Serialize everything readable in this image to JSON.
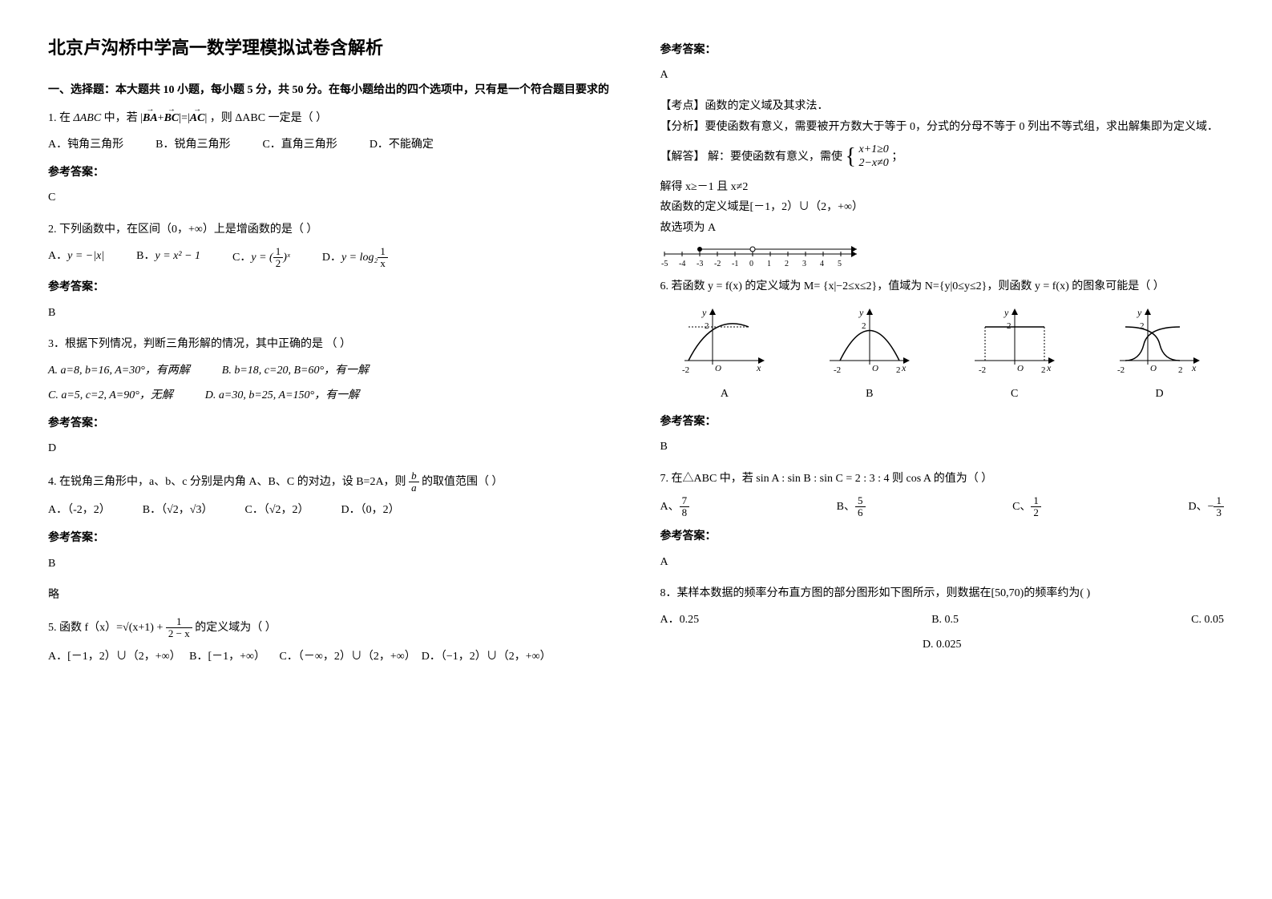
{
  "title": "北京卢沟桥中学高一数学理模拟试卷含解析",
  "section1": "一、选择题：本大题共 10 小题，每小题 5 分，共 50 分。在每小题给出的四个选项中，只有是一个符合题目要求的",
  "q1": {
    "stem_prefix": "1. 在",
    "stem_tri": "ΔABC",
    "stem_mid": " 中，若 ",
    "stem_cond": "|BA+BC|=|AC|",
    "stem_suffix": "，则 ΔABC 一定是（        ）",
    "A": "A．钝角三角形",
    "B": "B．锐角三角形",
    "C": "C．直角三角形",
    "D": "D．不能确定",
    "ans_head": "参考答案：",
    "ans": "C"
  },
  "q2": {
    "stem": "2. 下列函数中，在区间（0，+∞）上是增函数的是（        ）",
    "A_label": "A．",
    "A_expr": "y = −|x|",
    "B_label": "B．",
    "B_expr": "y = x² − 1",
    "C_label": "C．",
    "C_expr_pre": "y = (",
    "C_expr_num": "1",
    "C_expr_den": "2",
    "C_expr_post": ")ˣ",
    "D_label": "D．",
    "D_expr_pre": "y = log₂",
    "D_expr_num": "1",
    "D_expr_den": "x",
    "ans_head": "参考答案：",
    "ans": "B"
  },
  "q3": {
    "stem": "3．根据下列情况，判断三角形解的情况，其中正确的是      （        ）",
    "A": "A. a=8, b=16, A=30°，有两解",
    "B": "B. b=18, c=20, B=60°，有一解",
    "C": "C. a=5, c=2, A=90°，无解",
    "D": "D. a=30, b=25, A=150°，有一解",
    "ans_head": "参考答案：",
    "ans": "D"
  },
  "q4": {
    "stem_pre": "4. 在锐角三角形中，a、b、c 分别是内角 A、B、C 的对边，设 B=2A，则",
    "stem_frac_num": "b",
    "stem_frac_den": "a",
    "stem_post": "的取值范围（        ）",
    "A": "A．（-2，2）",
    "B": "B．（√2，√3）",
    "C": "C．（√2，2）",
    "D": "D．（0，2）",
    "ans_head": "参考答案：",
    "ans": "B",
    "note": "略"
  },
  "q5": {
    "stem_pre": "5. 函数 f（x）=√(x+1) + ",
    "stem_frac_num": "1",
    "stem_frac_den": "2 − x",
    "stem_post": " 的定义域为（       ）",
    "A": "A．[－1，2）∪（2，+∞）",
    "B": "B．[－1，+∞）",
    "C": "C．（－∞，2）∪（2，+∞）",
    "D": "D．（−1，2）∪（2，+∞）",
    "ans_head": "参考答案：",
    "ans": "A",
    "kd_label": "【考点】",
    "kd": "函数的定义域及其求法．",
    "fx_label": "【分析】",
    "fx": "要使函数有意义，需要被开方数大于等于 0，分式的分母不等于 0 列出不等式组，求出解集即为定义域．",
    "jd_label": "【解答】",
    "jd_pre": "解：要使函数有意义，需使",
    "jd_sys1": "x+1≥0",
    "jd_sys2": "2−x≠0",
    "jd_sep": "；",
    "jd_l1": "解得 x≥－1 且 x≠2",
    "jd_l2": "故函数的定义域是[－1，2）∪（2，+∞）",
    "jd_l3": "故选项为 A",
    "numline": {
      "ticks": [
        -5,
        -4,
        -3,
        -2,
        -1,
        0,
        1,
        2,
        3,
        4,
        5
      ],
      "open_at": 2,
      "closed_at": -1
    }
  },
  "q6": {
    "stem": "6. 若函数 y = f(x) 的定义域为 M= {x|−2≤x≤2}，值域为 N={y|0≤y≤2}，则函数 y = f(x) 的图象可能是（       ）",
    "labels": {
      "A": "A",
      "B": "B",
      "C": "C",
      "D": "D"
    },
    "axis": {
      "xmin": -2,
      "xmax": 2,
      "ymax": 2
    },
    "ans_head": "参考答案：",
    "ans": "B"
  },
  "q7": {
    "stem": "7. 在△ABC 中，若 sin A : sin B : sin C = 2 : 3 : 4  则 cos A 的值为（        ）",
    "A_label": "A、",
    "A_num": "7",
    "A_den": "8",
    "B_label": "B、",
    "B_num": "5",
    "B_den": "6",
    "C_label": "C、",
    "C_num": "1",
    "C_den": "2",
    "D_label": "D、",
    "D_pre": "−",
    "D_num": "1",
    "D_den": "3",
    "ans_head": "参考答案：",
    "ans": "A"
  },
  "q8": {
    "stem": "8．某样本数据的频率分布直方图的部分图形如下图所示，则数据在[50,70)的频率约为(     )",
    "A": "A．0.25",
    "B": "B. 0.5",
    "C": "C. 0.05",
    "D": "D. 0.025"
  },
  "colors": {
    "text": "#000000",
    "bg": "#ffffff",
    "axis": "#000000"
  }
}
